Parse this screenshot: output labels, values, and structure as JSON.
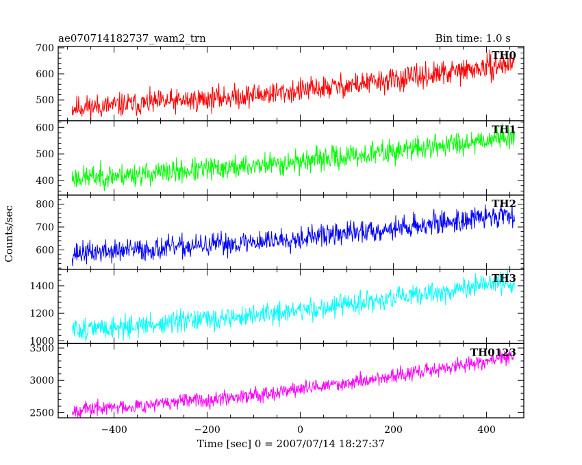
{
  "chart_data": {
    "type": "line",
    "title": "ae070714182737_wam2_trn",
    "subtitle": "Bin time: 1.0 s",
    "xlabel": "Time [sec] 0 = 2007/07/14 18:27:37",
    "ylabel": "Counts/sec",
    "xlim": [
      -520,
      480
    ],
    "x_ticks": [
      -400,
      -200,
      0,
      200,
      400
    ],
    "x_tick_labels": [
      "−400",
      "−200",
      "0",
      "200",
      "400"
    ],
    "x_data_range": [
      -490,
      460
    ],
    "grid": false,
    "legend": "none",
    "panels": [
      {
        "name": "TH0",
        "color": "#ff0000",
        "ylim": [
          420,
          705
        ],
        "y_ticks": [
          500,
          600,
          700
        ],
        "start": 470,
        "end": 640,
        "noise": 24,
        "seed": 11
      },
      {
        "name": "TH1",
        "color": "#00ff00",
        "ylim": [
          345,
          625
        ],
        "y_ticks": [
          400,
          500,
          600
        ],
        "start": 410,
        "end": 570,
        "noise": 23,
        "seed": 23
      },
      {
        "name": "TH2",
        "color": "#0000ff",
        "ylim": [
          515,
          840
        ],
        "y_ticks": [
          600,
          700,
          800
        ],
        "start": 585,
        "end": 760,
        "noise": 26,
        "seed": 37
      },
      {
        "name": "TH3",
        "color": "#00ffff",
        "ylim": [
          980,
          1520
        ],
        "y_ticks": [
          1000,
          1200,
          1400
        ],
        "start": 1080,
        "end": 1440,
        "noise": 42,
        "seed": 51
      },
      {
        "name": "TH0123",
        "color": "#ff00ff",
        "ylim": [
          2420,
          3570
        ],
        "y_ticks": [
          2500,
          3000,
          3500
        ],
        "start": 2540,
        "end": 3380,
        "noise": 60,
        "seed": 67
      }
    ]
  }
}
